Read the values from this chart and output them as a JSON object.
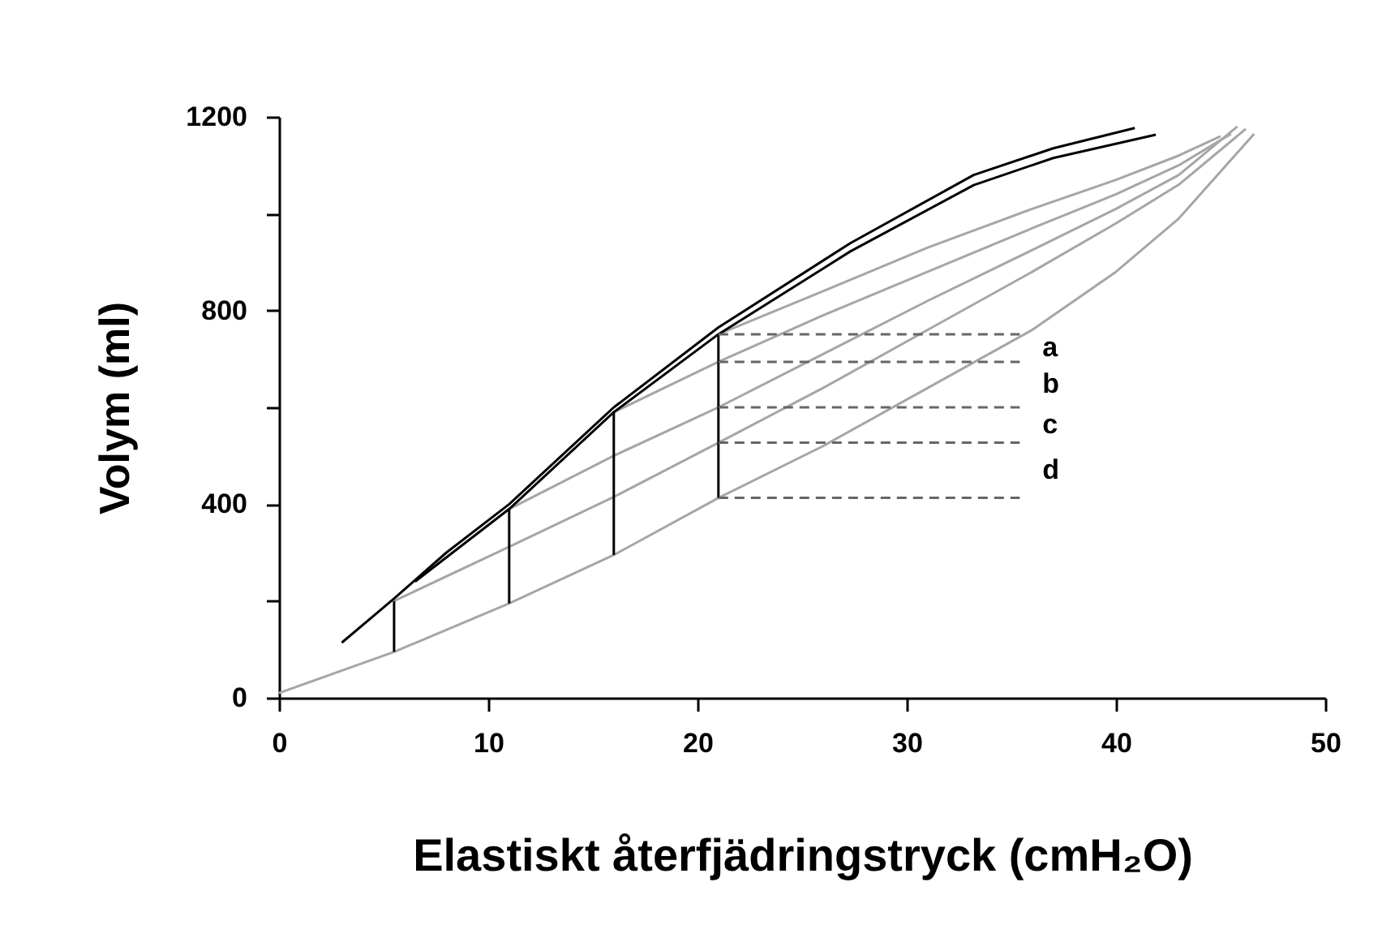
{
  "chart_data": {
    "type": "line",
    "xlabel": "Elastiskt återfjädringstryck (cmH₂O)",
    "ylabel": "Volym (ml)",
    "xlim": [
      0,
      50
    ],
    "xticks": [
      0,
      10,
      20,
      30,
      40,
      50
    ],
    "ylim": [
      0,
      1200
    ],
    "yticks": [
      0,
      {
        "value": 200,
        "label": null
      },
      400,
      {
        "value": 600,
        "label": null
      },
      800,
      {
        "value": 1000,
        "label": null
      },
      1200
    ],
    "grid": false,
    "marker": "none",
    "series": [
      {
        "color": "#a6a6a6",
        "x": [
          0,
          5.5,
          11,
          16,
          21,
          26,
          31,
          36,
          40,
          43,
          46.6
        ],
        "values": [
          10,
          95,
          195,
          295,
          413,
          520,
          640,
          760,
          880,
          990,
          1165
        ]
      },
      {
        "color": "#a6a6a6",
        "x": [
          5.5,
          11,
          16,
          21,
          26,
          31,
          36,
          40,
          43,
          46.2
        ],
        "values": [
          200,
          312,
          415,
          527,
          640,
          760,
          880,
          980,
          1060,
          1175
        ]
      },
      {
        "color": "#a6a6a6",
        "x": [
          11,
          16,
          21,
          26,
          31,
          36,
          40,
          43,
          45.8
        ],
        "values": [
          390,
          500,
          600,
          710,
          820,
          925,
          1010,
          1080,
          1180
        ]
      },
      {
        "color": "#a6a6a6",
        "x": [
          16,
          21,
          26,
          31,
          36,
          40,
          43,
          45.5
        ],
        "values": [
          590,
          694,
          790,
          880,
          970,
          1040,
          1100,
          1165
        ]
      },
      {
        "color": "#a6a6a6",
        "x": [
          21,
          26,
          31,
          36,
          40,
          43,
          45
        ],
        "values": [
          751,
          840,
          930,
          1010,
          1070,
          1120,
          1160
        ]
      },
      {
        "color": "#000000",
        "x": [
          3,
          5.5,
          8,
          11,
          16,
          21,
          27.3,
          33.2,
          37,
          40.9
        ],
        "values": [
          114,
          205,
          300,
          400,
          600,
          765,
          939,
          1080,
          1135,
          1177
        ]
      },
      {
        "color": "#000000",
        "x": [
          6.5,
          11,
          16,
          21,
          27.3,
          33.2,
          37,
          41.9
        ],
        "values": [
          240,
          390,
          590,
          751,
          922,
          1059,
          1115,
          1163
        ]
      },
      {
        "color": "#000000",
        "x": [
          5.5,
          5.5
        ],
        "values": [
          95,
          200
        ]
      },
      {
        "color": "#000000",
        "x": [
          11,
          11
        ],
        "values": [
          195,
          390
        ]
      },
      {
        "color": "#000000",
        "x": [
          16,
          16
        ],
        "values": [
          295,
          590
        ]
      },
      {
        "color": "#000000",
        "x": [
          21,
          21
        ],
        "values": [
          413,
          751
        ]
      },
      {
        "color": "#666666",
        "line_style": "dashed",
        "x": [
          21,
          35.4
        ],
        "values": [
          751,
          751
        ]
      },
      {
        "color": "#666666",
        "line_style": "dashed",
        "x": [
          21,
          35.4
        ],
        "values": [
          694,
          694
        ]
      },
      {
        "color": "#666666",
        "line_style": "dashed",
        "x": [
          21,
          35.4
        ],
        "values": [
          600,
          600
        ]
      },
      {
        "color": "#666666",
        "line_style": "dashed",
        "x": [
          21,
          35.4
        ],
        "values": [
          527,
          527
        ]
      },
      {
        "color": "#666666",
        "line_style": "dashed",
        "x": [
          21,
          35.4
        ],
        "values": [
          413,
          413
        ]
      }
    ],
    "annotations": [
      "a",
      "b",
      "c",
      "d"
    ]
  }
}
